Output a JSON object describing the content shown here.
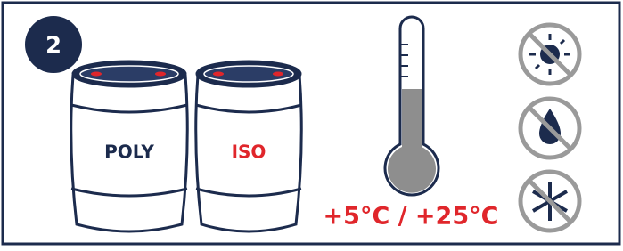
{
  "step": "2",
  "drums": [
    {
      "label": "POLY"
    },
    {
      "label": "ISO"
    }
  ],
  "temperature_range": "+5°C / +25°C"
}
